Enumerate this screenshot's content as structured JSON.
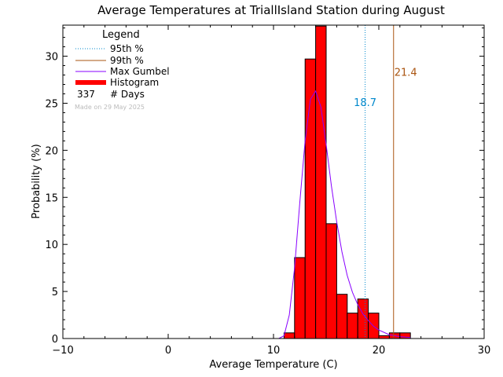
{
  "chart_data": {
    "type": "bar",
    "title": "Average Temperatures at TriallIsland Station during August",
    "xlabel": "Average Temperature (C)",
    "ylabel": "Probability (%)",
    "xlim": [
      -10,
      30
    ],
    "ylim": [
      0,
      33.3
    ],
    "xticks": [
      -10,
      0,
      10,
      20,
      30
    ],
    "yticks": [
      0,
      5,
      10,
      15,
      20,
      25,
      30
    ],
    "histogram": {
      "name": "Histogram",
      "color": "#ff0000",
      "bin_width": 1,
      "bin_starts": [
        11,
        12,
        13,
        14,
        15,
        16,
        17,
        18,
        19,
        20,
        21,
        22
      ],
      "values": [
        0.6,
        8.6,
        29.7,
        33.2,
        12.2,
        4.7,
        2.7,
        4.2,
        2.7,
        0.3,
        0.6,
        0.6
      ]
    },
    "gumbel": {
      "name": "Max Gumbel",
      "color": "#8800ff",
      "x": [
        10.5,
        11,
        11.5,
        12,
        12.5,
        13,
        13.5,
        14,
        14.5,
        15,
        15.5,
        16,
        16.5,
        17,
        17.5,
        18,
        18.5,
        19,
        19.5,
        20,
        21,
        22,
        23
      ],
      "y": [
        0,
        0.3,
        2.5,
        7.5,
        14.5,
        21,
        25.4,
        26.3,
        24.6,
        20.6,
        16.2,
        12.4,
        9.2,
        6.7,
        4.9,
        3.6,
        2.6,
        1.9,
        1.3,
        0.9,
        0.4,
        0.2,
        0.1
      ]
    },
    "percentile_95": {
      "name": "95th %",
      "value": 18.7,
      "label": "18.7",
      "color": "#0088cc"
    },
    "percentile_99": {
      "name": "99th %",
      "value": 21.4,
      "label": "21.4",
      "color": "#aa5511"
    },
    "legend": {
      "title": "Legend",
      "days_count": "337",
      "days_label": "# Days",
      "made_on": "Made on 29 May 2025",
      "placement": "top-left"
    }
  }
}
